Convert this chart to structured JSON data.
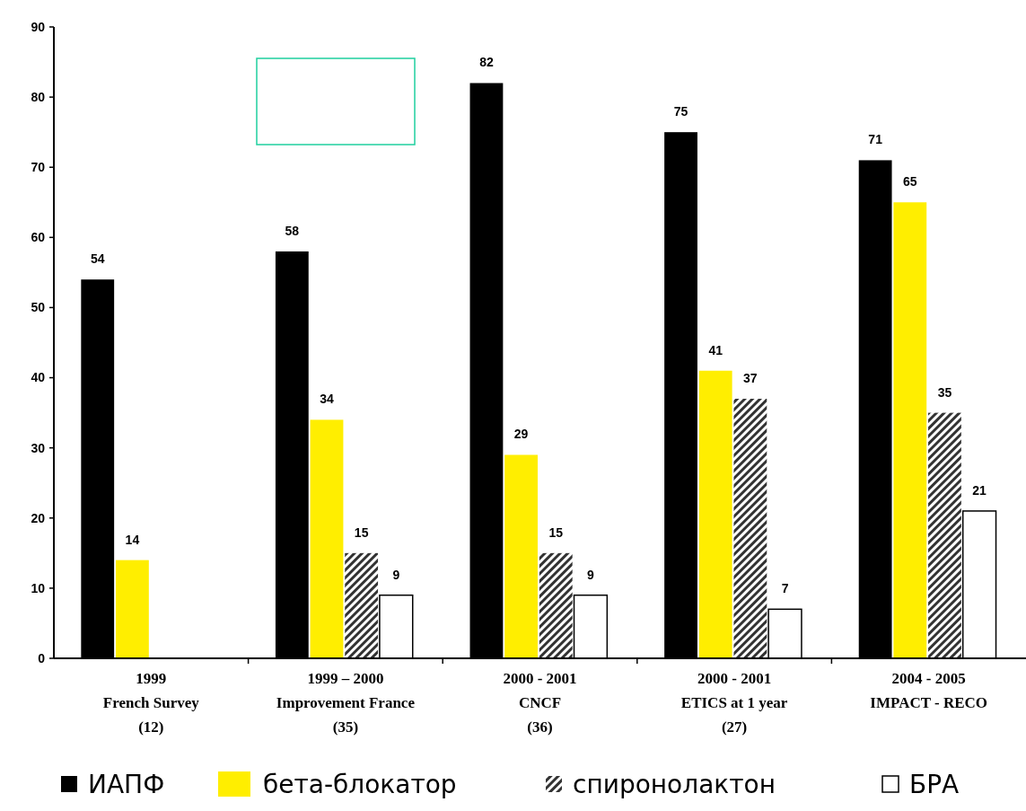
{
  "chart_data": {
    "type": "bar",
    "categories": [
      "1999\nFrench Survey\n(12)",
      "1999 – 2000\nImprovement France\n(35)",
      "2000 - 2001\nCNCF\n(36)",
      "2000 - 2001\nETICS at 1 year\n(27)",
      "2004 - 2005\nIMPACT - RECO"
    ],
    "series": [
      {
        "name": "ИАПФ",
        "color": "#000000",
        "values": [
          54,
          58,
          82,
          75,
          71
        ]
      },
      {
        "name": "бета-блокатор",
        "color": "#ffee00",
        "values": [
          14,
          34,
          29,
          41,
          65
        ]
      },
      {
        "name": "спиронолактон",
        "color": "#333333",
        "values": [
          null,
          15,
          15,
          37,
          35
        ]
      },
      {
        "name": "БРА",
        "color": "#ffffff",
        "values": [
          null,
          9,
          9,
          7,
          21
        ]
      }
    ],
    "ylim": [
      0,
      90
    ],
    "yticks": [
      0,
      10,
      20,
      30,
      40,
      50,
      60,
      70,
      80,
      90
    ],
    "data_labels": true,
    "grid": false,
    "legend": "bottom"
  }
}
